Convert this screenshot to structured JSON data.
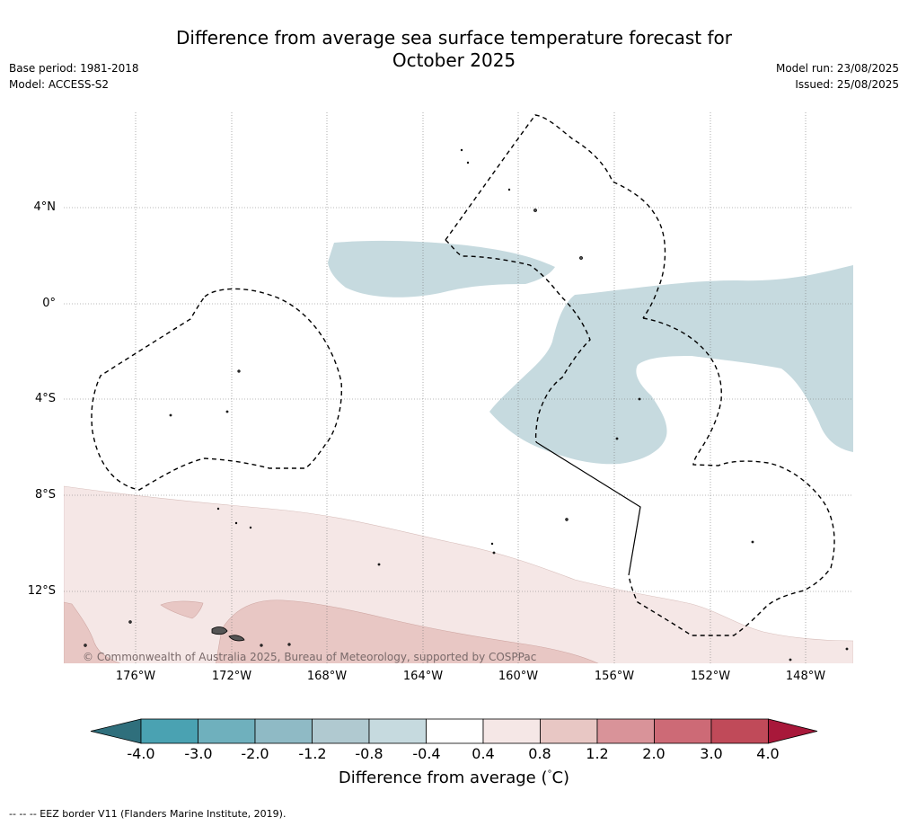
{
  "header": {
    "title_line1": "Difference from average sea surface temperature forecast for",
    "title_line2": "October 2025",
    "base_period": "Base period: 1981-2018",
    "model": "Model: ACCESS-S2",
    "model_run": "Model run: 23/08/2025",
    "issued": "Issued: 25/08/2025"
  },
  "map": {
    "lat_labels": [
      "4°N",
      "0°",
      "4°S",
      "8°S",
      "12°S"
    ],
    "lon_labels": [
      "176°W",
      "172°W",
      "168°W",
      "164°W",
      "160°W",
      "156°W",
      "152°W",
      "148°W"
    ],
    "copyright": "© Commonwealth of Australia 2025, Bureau of Meteorology, supported by COSPPac",
    "shaded_regions": [
      {
        "range": "-0.8 to -0.4",
        "color": "#c6dadf",
        "location": "equatorial central Pacific north of 0°"
      },
      {
        "range": "-0.8 to -0.4",
        "color": "#c6dadf",
        "location": "east of 160°W, 0° to 6°S"
      },
      {
        "range": "0.4 to 0.8",
        "color": "#f5e7e6",
        "location": "south of 8°S"
      },
      {
        "range": "0.8 to 1.2",
        "color": "#e8c7c4",
        "location": "south of 13°S"
      }
    ]
  },
  "colorbar": {
    "ticks": [
      "-4.0",
      "-3.0",
      "-2.0",
      "-1.2",
      "-0.8",
      "-0.4",
      "0.4",
      "0.8",
      "1.2",
      "2.0",
      "3.0",
      "4.0"
    ],
    "colors": [
      "#2f6f7c",
      "#4aa2b2",
      "#6fb0bd",
      "#8fbac5",
      "#b0c9d0",
      "#c6dadf",
      "#ffffff",
      "#f5e7e6",
      "#e8c7c4",
      "#d99399",
      "#cd6a76",
      "#c04a59",
      "#a8183a"
    ],
    "label": "Difference from average (°C)",
    "label_prefix": "Difference from average (",
    "label_degree": "°",
    "label_suffix": "C)"
  },
  "footer": {
    "eez_note": "--  --  -- EEZ border V11 (Flanders Marine Institute, 2019)."
  }
}
